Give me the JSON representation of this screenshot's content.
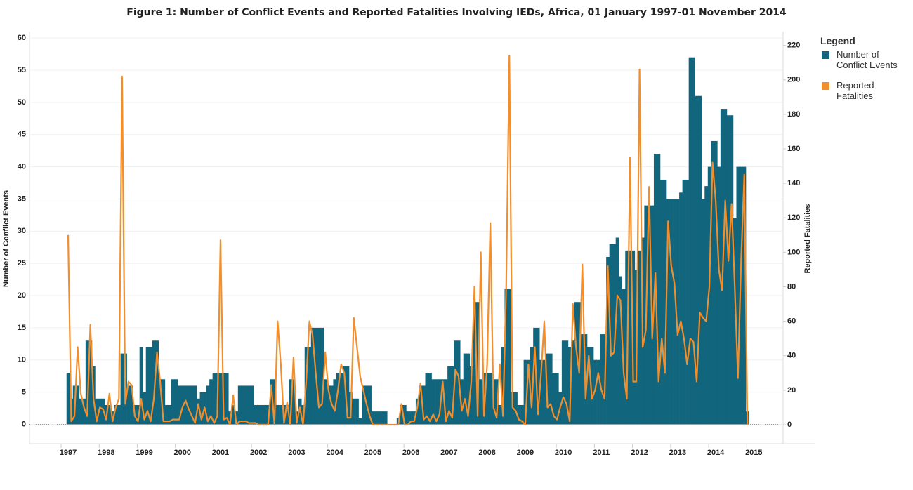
{
  "chart_data": {
    "type": "bar_line",
    "title": "Figure 1: Number of Conflict Events and Reported Fatalities Involving IEDs, Africa, 01 January 1997-01 November 2014",
    "y_label": "Number of Conflict Events",
    "y2_label": "Reported Fatalities",
    "legend_title": "Legend",
    "legend": "right",
    "categories": [
      null,
      null,
      null,
      null,
      null,
      null,
      null,
      null,
      null,
      null,
      null,
      null,
      null,
      null,
      null,
      null,
      null,
      null,
      null,
      null,
      null,
      null,
      null,
      null,
      null,
      null,
      null,
      null,
      null,
      null,
      null,
      null,
      null,
      null,
      null,
      null,
      null,
      null,
      null,
      null,
      null,
      null,
      null,
      null,
      null,
      null,
      null,
      null,
      null,
      null,
      null,
      null,
      null,
      null,
      null,
      null,
      null,
      null,
      null,
      null,
      null,
      null,
      null,
      null,
      null,
      null,
      null,
      null,
      null,
      null,
      null,
      null,
      null,
      null,
      null,
      null,
      null,
      null,
      null,
      null,
      null,
      null,
      null,
      null,
      null,
      null,
      null,
      null,
      null,
      null,
      null,
      null,
      null,
      null,
      null,
      null,
      null,
      null,
      null,
      null,
      null,
      null,
      null,
      null,
      null,
      null,
      null,
      null,
      null,
      null,
      null,
      null,
      null,
      null,
      null,
      null,
      null,
      null,
      null,
      null,
      null,
      null,
      null,
      null,
      null,
      null,
      null,
      null,
      null,
      null,
      null,
      null,
      null,
      null,
      null,
      null,
      null,
      null,
      null,
      null,
      null,
      null,
      null,
      null,
      null,
      null,
      null,
      null,
      null,
      null,
      null,
      null,
      null,
      null,
      null,
      null,
      null,
      null,
      null,
      null,
      null,
      null,
      null,
      null,
      null,
      null,
      null,
      null,
      null,
      null,
      null,
      null,
      null,
      null,
      null,
      null,
      null,
      null,
      null,
      null,
      null,
      null,
      null,
      null,
      null,
      null,
      null,
      null,
      null,
      null,
      null,
      null,
      null,
      null,
      null,
      null,
      null,
      null,
      null,
      null,
      null,
      null,
      null,
      null,
      null,
      null,
      null,
      null,
      null,
      null,
      null,
      null,
      null,
      null,
      null
    ],
    "xticks": [
      1997,
      1998,
      1999,
      2000,
      2001,
      2002,
      2003,
      2004,
      2005,
      2006,
      2007,
      2008,
      2009,
      2010,
      2011,
      2012,
      2013,
      2014,
      2015
    ],
    "ylim": [
      -3,
      61
    ],
    "yticks": [
      0,
      5,
      10,
      15,
      20,
      25,
      30,
      35,
      40,
      45,
      50,
      55,
      60
    ],
    "y2lim": [
      -11,
      228
    ],
    "y2ticks": [
      0,
      20,
      40,
      60,
      80,
      100,
      120,
      140,
      160,
      180,
      200,
      220
    ],
    "grid": true,
    "series": [
      {
        "name": "Number of Conflict Events",
        "type": "bar",
        "color": "#11657c",
        "values": [
          8,
          4,
          6,
          6,
          4,
          4,
          13,
          13,
          9,
          4,
          4,
          4,
          3,
          3,
          2,
          3,
          3,
          11,
          11,
          6,
          6,
          3,
          3,
          12,
          5,
          12,
          12,
          13,
          13,
          7,
          7,
          3,
          3,
          7,
          7,
          6,
          6,
          6,
          6,
          6,
          6,
          4,
          5,
          5,
          6,
          7,
          8,
          8,
          8,
          8,
          8,
          2,
          3,
          2,
          6,
          6,
          6,
          6,
          6,
          3,
          3,
          3,
          3,
          3,
          7,
          7,
          3,
          3,
          3,
          3,
          7,
          7,
          2,
          4,
          3,
          12,
          12,
          15,
          15,
          15,
          15,
          7,
          6,
          6,
          7,
          8,
          8,
          9,
          9,
          5,
          4,
          4,
          1,
          6,
          6,
          6,
          2,
          2,
          2,
          2,
          2,
          0,
          0,
          0,
          1,
          3,
          3,
          2,
          2,
          2,
          4,
          6,
          6,
          8,
          8,
          7,
          7,
          7,
          7,
          7,
          9,
          9,
          13,
          13,
          7,
          11,
          11,
          9,
          19,
          19,
          7,
          8,
          8,
          8,
          7,
          7,
          3,
          12,
          21,
          21,
          5,
          5,
          3,
          3,
          10,
          10,
          12,
          15,
          15,
          10,
          10,
          11,
          11,
          8,
          8,
          5,
          13,
          13,
          12,
          13,
          19,
          19,
          14,
          14,
          12,
          12,
          10,
          10,
          14,
          14,
          26,
          28,
          28,
          29,
          23,
          21,
          27,
          27,
          27,
          24,
          27,
          29,
          34,
          34,
          34,
          42,
          42,
          38,
          38,
          35,
          35,
          35,
          35,
          36,
          38,
          38,
          57,
          57,
          51,
          51,
          35,
          37,
          40,
          44,
          44,
          40,
          49,
          49,
          48,
          48,
          32,
          40,
          40,
          40,
          2
        ]
      },
      {
        "name": "Reported Fatalities",
        "type": "line",
        "axis": "y2",
        "color": "#f28e2b",
        "values": [
          110,
          2,
          5,
          45,
          18,
          10,
          5,
          58,
          15,
          2,
          10,
          9,
          3,
          18,
          2,
          10,
          15,
          202,
          12,
          25,
          23,
          5,
          2,
          15,
          3,
          8,
          2,
          15,
          42,
          25,
          2,
          2,
          2,
          3,
          3,
          3,
          10,
          14,
          9,
          5,
          1,
          12,
          3,
          10,
          2,
          5,
          1,
          5,
          107,
          3,
          4,
          0,
          17,
          0,
          2,
          2,
          2,
          1,
          1,
          1,
          0,
          0,
          0,
          0,
          23,
          0,
          60,
          35,
          1,
          13,
          0,
          39,
          1,
          10,
          0,
          25,
          60,
          52,
          30,
          10,
          12,
          42,
          20,
          12,
          8,
          20,
          35,
          30,
          4,
          4,
          62,
          45,
          28,
          20,
          12,
          5,
          0,
          0,
          0,
          0,
          0,
          0,
          0,
          0,
          0,
          12,
          0,
          0,
          2,
          2,
          10,
          24,
          3,
          5,
          2,
          6,
          2,
          6,
          25,
          2,
          8,
          4,
          32,
          28,
          8,
          15,
          5,
          25,
          80,
          5,
          100,
          5,
          35,
          117,
          10,
          4,
          35,
          5,
          80,
          214,
          10,
          8,
          3,
          2,
          0,
          35,
          10,
          45,
          6,
          30,
          60,
          10,
          12,
          5,
          3,
          10,
          16,
          12,
          2,
          70,
          45,
          30,
          93,
          15,
          40,
          15,
          20,
          30,
          20,
          15,
          92,
          40,
          42,
          75,
          72,
          30,
          15,
          155,
          25,
          25,
          206,
          45,
          55,
          138,
          50,
          88,
          25,
          50,
          30,
          118,
          92,
          82,
          52,
          60,
          50,
          35,
          50,
          48,
          25,
          65,
          62,
          60,
          80,
          152,
          130,
          90,
          78,
          130,
          95,
          128,
          80,
          27,
          95,
          145,
          0
        ]
      }
    ]
  }
}
